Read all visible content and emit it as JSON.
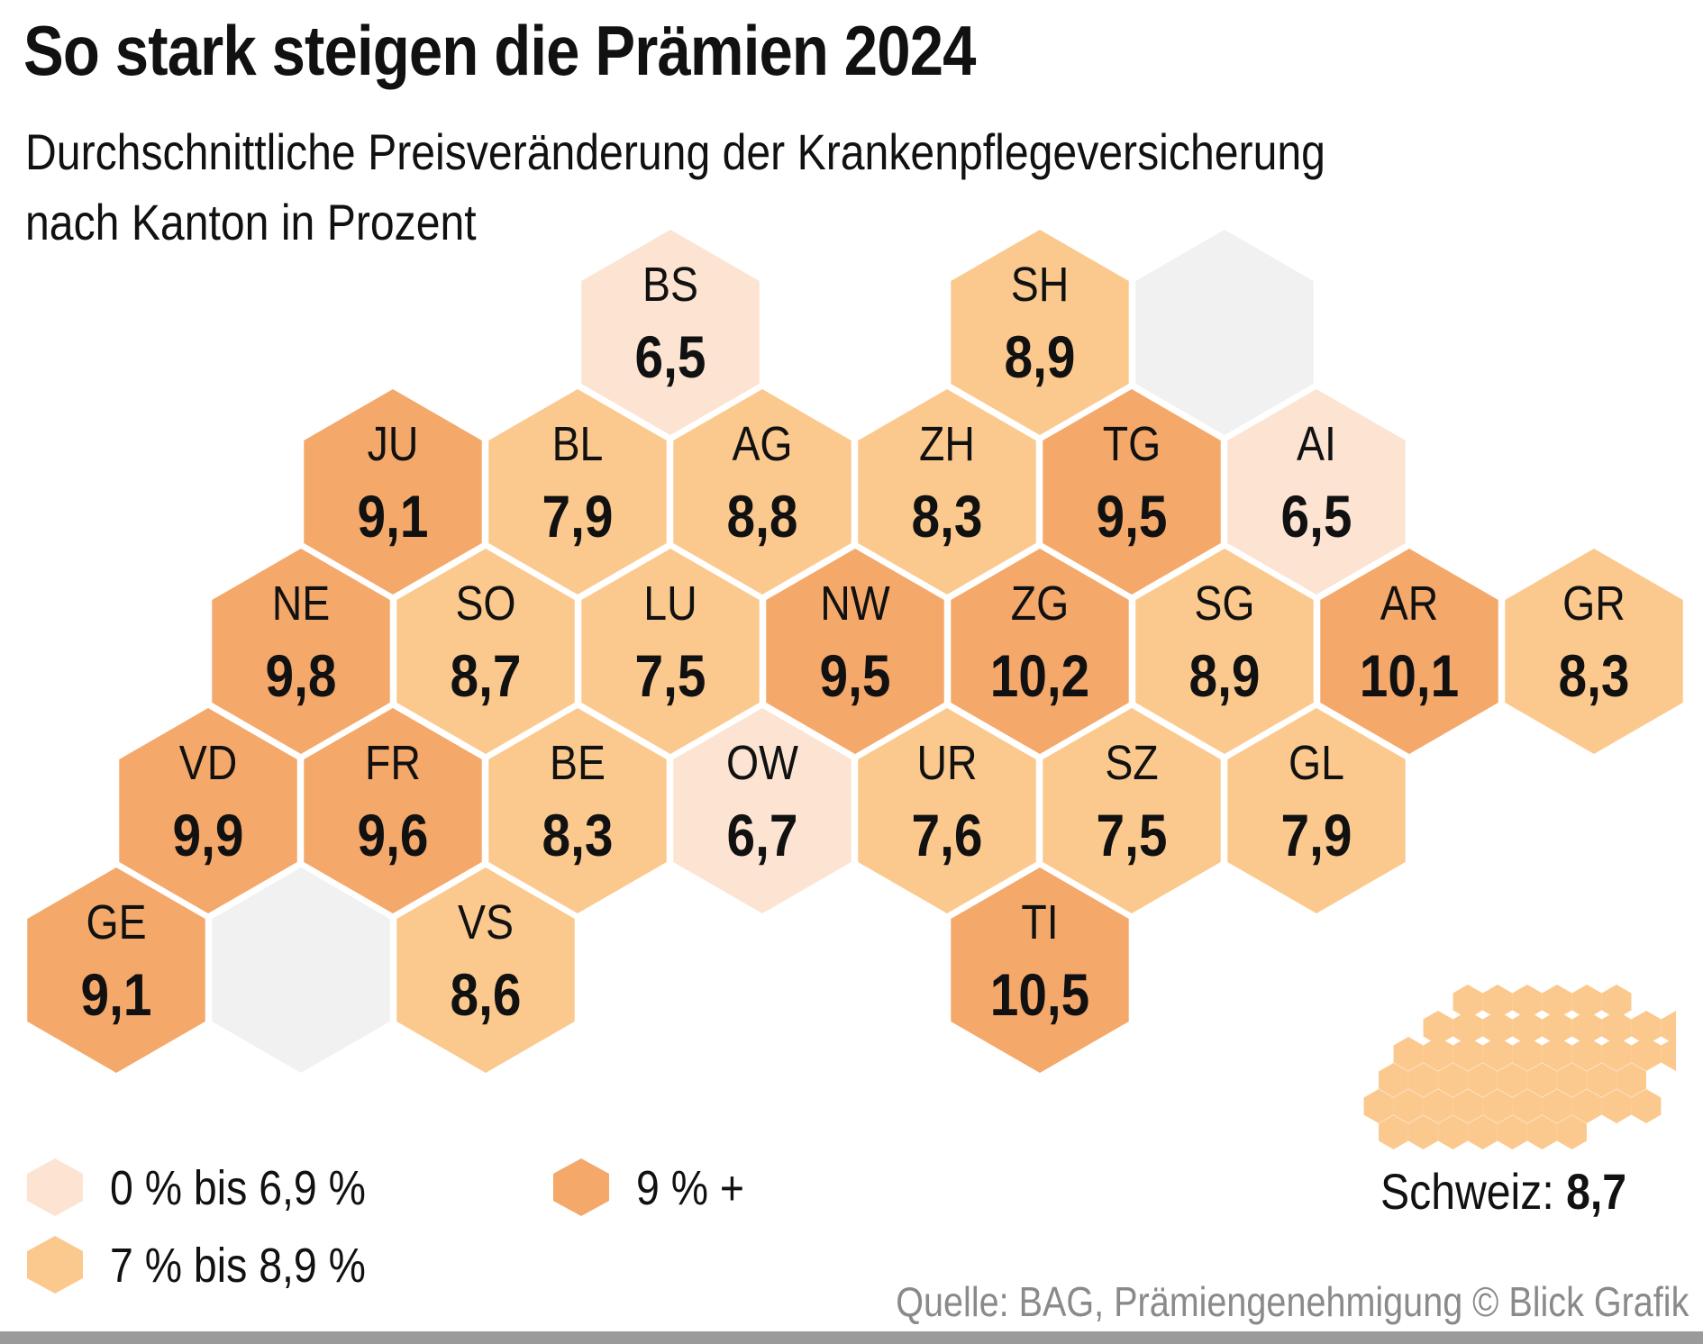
{
  "title": "So stark steigen die Prämien 2024",
  "subtitle_line1": "Durchschnittliche Preisveränderung der Krankenpflegeversicherung",
  "subtitle_line2": "nach Kanton in Prozent",
  "colors": {
    "low": "#fce3d2",
    "mid": "#fbc98e",
    "high": "#f4a86a",
    "placeholder": "#f1f1f1"
  },
  "legend": [
    {
      "label": "0 % bis 6,9 %",
      "category": "low"
    },
    {
      "label": "7 % bis 8,9 %",
      "category": "mid"
    },
    {
      "label": "9 % +",
      "category": "high"
    }
  ],
  "cantons": [
    {
      "code": "BS",
      "value": "6,5",
      "category": "low"
    },
    {
      "code": "SH",
      "value": "8,9",
      "category": "mid"
    },
    {
      "code": "JU",
      "value": "9,1",
      "category": "high"
    },
    {
      "code": "BL",
      "value": "7,9",
      "category": "mid"
    },
    {
      "code": "AG",
      "value": "8,8",
      "category": "mid"
    },
    {
      "code": "ZH",
      "value": "8,3",
      "category": "mid"
    },
    {
      "code": "TG",
      "value": "9,5",
      "category": "high"
    },
    {
      "code": "AI",
      "value": "6,5",
      "category": "low"
    },
    {
      "code": "NE",
      "value": "9,8",
      "category": "high"
    },
    {
      "code": "SO",
      "value": "8,7",
      "category": "mid"
    },
    {
      "code": "LU",
      "value": "7,5",
      "category": "mid"
    },
    {
      "code": "NW",
      "value": "9,5",
      "category": "high"
    },
    {
      "code": "ZG",
      "value": "10,2",
      "category": "high"
    },
    {
      "code": "SG",
      "value": "8,9",
      "category": "mid"
    },
    {
      "code": "AR",
      "value": "10,1",
      "category": "high"
    },
    {
      "code": "GR",
      "value": "8,3",
      "category": "mid"
    },
    {
      "code": "VD",
      "value": "9,9",
      "category": "high"
    },
    {
      "code": "FR",
      "value": "9,6",
      "category": "high"
    },
    {
      "code": "BE",
      "value": "8,3",
      "category": "mid"
    },
    {
      "code": "OW",
      "value": "6,7",
      "category": "low"
    },
    {
      "code": "UR",
      "value": "7,6",
      "category": "mid"
    },
    {
      "code": "SZ",
      "value": "7,5",
      "category": "mid"
    },
    {
      "code": "GL",
      "value": "7,9",
      "category": "mid"
    },
    {
      "code": "GE",
      "value": "9,1",
      "category": "high"
    },
    {
      "code": "VS",
      "value": "8,6",
      "category": "mid"
    },
    {
      "code": "TI",
      "value": "10,5",
      "category": "high"
    }
  ],
  "total_label": "Schweiz:",
  "total_value": "8,7",
  "source": "Quelle: BAG, Prämiengenehmigung  © Blick Grafik"
}
